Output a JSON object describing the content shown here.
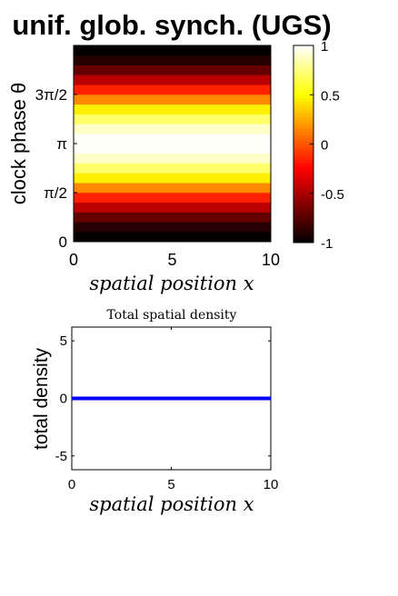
{
  "figure": {
    "title": "unif. glob. synch. (UGS)"
  },
  "chart_data": [
    {
      "type": "heatmap",
      "title": "",
      "xlabel": "spatial position x",
      "ylabel": "clock phase θ",
      "xlim": [
        0,
        10
      ],
      "ylim": [
        0,
        6.2832
      ],
      "x_ticks": [
        {
          "value": 0,
          "label": "0"
        },
        {
          "value": 5,
          "label": "5"
        },
        {
          "value": 10,
          "label": "10"
        }
      ],
      "y_ticks": [
        {
          "value": 0,
          "label": "0"
        },
        {
          "value": 1.5708,
          "label": "π/2"
        },
        {
          "value": 3.1416,
          "label": "π"
        },
        {
          "value": 4.7124,
          "label": "3π/2"
        }
      ],
      "y_bands": 20,
      "value_function": "-cos(theta), constant along x",
      "colormap": "hot",
      "clim": [
        -1,
        1
      ],
      "colorbar_ticks": [
        {
          "value": 1,
          "label": "1"
        },
        {
          "value": 0.5,
          "label": "0.5"
        },
        {
          "value": 0,
          "label": "0"
        },
        {
          "value": -0.5,
          "label": "-0.5"
        },
        {
          "value": -1,
          "label": "-1"
        }
      ]
    },
    {
      "type": "line",
      "title": "Total spatial density",
      "xlabel": "spatial position x",
      "ylabel": "total density",
      "xlim": [
        0,
        10
      ],
      "ylim": [
        -6.2,
        6.2
      ],
      "x_ticks": [
        {
          "value": 0,
          "label": "0"
        },
        {
          "value": 5,
          "label": "5"
        },
        {
          "value": 10,
          "label": "10"
        }
      ],
      "y_ticks": [
        {
          "value": 5,
          "label": "5"
        },
        {
          "value": 0,
          "label": "0"
        },
        {
          "value": -5,
          "label": "-5"
        }
      ],
      "series": [
        {
          "color": "#0000ff",
          "x": [
            0,
            10
          ],
          "y": [
            0,
            0
          ]
        }
      ]
    }
  ]
}
